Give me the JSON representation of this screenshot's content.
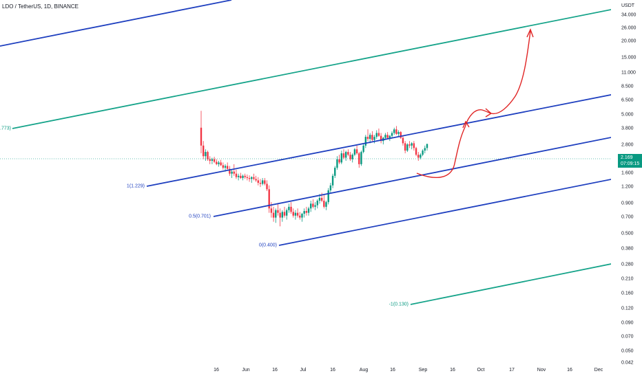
{
  "title": "LDO / TetherUS, 1D, BINANCE",
  "price_axis": {
    "unit": "USDT",
    "ticks": [
      "34.000",
      "26.000",
      "20.000",
      "15.000",
      "11.000",
      "8.500",
      "6.500",
      "5.000",
      "3.800",
      "2.800",
      "2.169",
      "1.600",
      "1.200",
      "0.900",
      "0.700",
      "0.500",
      "0.380",
      "0.280",
      "0.210",
      "0.160",
      "0.120",
      "0.090",
      "0.070",
      "0.050",
      "0.042"
    ]
  },
  "last_price": {
    "value": "2.169",
    "countdown": "07:09:15",
    "color": "#089981"
  },
  "time_axis": {
    "ticks": [
      "16",
      "Jun",
      "16",
      "Jul",
      "16",
      "Aug",
      "16",
      "Sep",
      "16",
      "Oct",
      "17",
      "Nov",
      "16",
      "Dec"
    ]
  },
  "fib_channel": {
    "labels": [
      {
        "text": "1(1.229)",
        "color": "#1e3fbf"
      },
      {
        "text": "0.5(0.701)",
        "color": "#1e3fbf"
      },
      {
        "text": "0(0.400)",
        "color": "#1e3fbf"
      },
      {
        "text": "-1(0.130)",
        "color": "#089981"
      },
      {
        "text": ".773)",
        "color": "#089981"
      }
    ],
    "colors": {
      "blue": "#1e3fbf",
      "green": "#14a389",
      "red": "#e02424"
    }
  },
  "chart_data": {
    "type": "candlestick",
    "title": "LDO / TetherUS, 1D, BINANCE",
    "xlabel": "",
    "ylabel": "USDT",
    "y_scale": "log",
    "ylim": [
      0.042,
      34
    ],
    "x_ticks": [
      "16",
      "Jun",
      "16",
      "Jul",
      "16",
      "Aug",
      "16",
      "Sep",
      "16",
      "Oct",
      "17",
      "Nov",
      "16",
      "Dec"
    ],
    "candles": [
      [
        3.0,
        4.2,
        1.8,
        2.1
      ],
      [
        2.1,
        2.3,
        1.6,
        1.7
      ],
      [
        1.7,
        1.95,
        1.55,
        1.85
      ],
      [
        1.85,
        1.9,
        1.55,
        1.6
      ],
      [
        1.6,
        1.7,
        1.45,
        1.55
      ],
      [
        1.55,
        1.65,
        1.45,
        1.6
      ],
      [
        1.6,
        1.68,
        1.48,
        1.52
      ],
      [
        1.52,
        1.6,
        1.42,
        1.45
      ],
      [
        1.45,
        1.55,
        1.38,
        1.5
      ],
      [
        1.5,
        1.58,
        1.4,
        1.42
      ],
      [
        1.42,
        1.5,
        1.3,
        1.35
      ],
      [
        1.35,
        1.45,
        1.25,
        1.4
      ],
      [
        1.4,
        1.5,
        1.3,
        1.32
      ],
      [
        1.32,
        1.4,
        1.15,
        1.2
      ],
      [
        1.2,
        1.3,
        1.1,
        1.25
      ],
      [
        1.25,
        1.45,
        1.15,
        1.2
      ],
      [
        1.2,
        1.3,
        1.08,
        1.12
      ],
      [
        1.12,
        1.2,
        1.05,
        1.15
      ],
      [
        1.15,
        1.22,
        1.08,
        1.1
      ],
      [
        1.1,
        1.18,
        1.05,
        1.15
      ],
      [
        1.15,
        1.2,
        1.08,
        1.12
      ],
      [
        1.12,
        1.18,
        1.05,
        1.1
      ],
      [
        1.1,
        1.16,
        1.02,
        1.08
      ],
      [
        1.08,
        1.14,
        1.0,
        1.12
      ],
      [
        1.12,
        1.2,
        1.05,
        1.08
      ],
      [
        1.08,
        1.15,
        1.02,
        1.05
      ],
      [
        1.05,
        1.12,
        0.95,
        1.0
      ],
      [
        1.0,
        1.08,
        0.92,
        0.98
      ],
      [
        0.98,
        1.1,
        0.95,
        1.05
      ],
      [
        1.05,
        1.1,
        0.95,
        0.98
      ],
      [
        0.98,
        1.05,
        0.85,
        0.88
      ],
      [
        0.88,
        0.95,
        0.55,
        0.6
      ],
      [
        0.6,
        0.68,
        0.5,
        0.55
      ],
      [
        0.55,
        0.62,
        0.46,
        0.5
      ],
      [
        0.5,
        0.6,
        0.45,
        0.58
      ],
      [
        0.58,
        0.66,
        0.52,
        0.55
      ],
      [
        0.55,
        0.6,
        0.42,
        0.5
      ],
      [
        0.5,
        0.58,
        0.46,
        0.56
      ],
      [
        0.56,
        0.62,
        0.5,
        0.52
      ],
      [
        0.52,
        0.6,
        0.48,
        0.58
      ],
      [
        0.58,
        0.66,
        0.55,
        0.62
      ],
      [
        0.62,
        0.68,
        0.54,
        0.56
      ],
      [
        0.56,
        0.6,
        0.5,
        0.52
      ],
      [
        0.52,
        0.58,
        0.48,
        0.55
      ],
      [
        0.55,
        0.6,
        0.5,
        0.52
      ],
      [
        0.52,
        0.56,
        0.48,
        0.5
      ],
      [
        0.5,
        0.55,
        0.46,
        0.54
      ],
      [
        0.54,
        0.6,
        0.5,
        0.57
      ],
      [
        0.57,
        0.62,
        0.52,
        0.55
      ],
      [
        0.55,
        0.62,
        0.52,
        0.6
      ],
      [
        0.6,
        0.7,
        0.56,
        0.66
      ],
      [
        0.66,
        0.72,
        0.6,
        0.62
      ],
      [
        0.62,
        0.68,
        0.58,
        0.64
      ],
      [
        0.64,
        0.72,
        0.6,
        0.7
      ],
      [
        0.7,
        0.8,
        0.66,
        0.74
      ],
      [
        0.74,
        0.82,
        0.68,
        0.7
      ],
      [
        0.7,
        0.78,
        0.6,
        0.62
      ],
      [
        0.62,
        0.7,
        0.58,
        0.68
      ],
      [
        0.68,
        0.9,
        0.65,
        0.86
      ],
      [
        0.86,
        1.0,
        0.82,
        0.95
      ],
      [
        0.95,
        1.2,
        0.9,
        1.15
      ],
      [
        1.15,
        1.4,
        1.1,
        1.35
      ],
      [
        1.35,
        1.7,
        1.3,
        1.6
      ],
      [
        1.6,
        1.75,
        1.45,
        1.5
      ],
      [
        1.5,
        1.9,
        1.45,
        1.8
      ],
      [
        1.8,
        1.95,
        1.6,
        1.65
      ],
      [
        1.65,
        1.9,
        1.55,
        1.85
      ],
      [
        1.85,
        1.95,
        1.7,
        1.75
      ],
      [
        1.75,
        1.85,
        1.55,
        1.6
      ],
      [
        1.6,
        1.8,
        1.5,
        1.75
      ],
      [
        1.75,
        2.0,
        1.7,
        1.95
      ],
      [
        1.95,
        2.1,
        1.75,
        1.8
      ],
      [
        1.8,
        1.85,
        1.35,
        1.45
      ],
      [
        1.45,
        1.9,
        1.4,
        1.85
      ],
      [
        1.85,
        2.2,
        1.8,
        2.1
      ],
      [
        2.1,
        2.6,
        2.0,
        2.5
      ],
      [
        2.5,
        2.9,
        2.3,
        2.4
      ],
      [
        2.4,
        2.7,
        2.2,
        2.6
      ],
      [
        2.6,
        2.8,
        2.3,
        2.35
      ],
      [
        2.35,
        2.6,
        2.2,
        2.5
      ],
      [
        2.5,
        2.85,
        2.4,
        2.7
      ],
      [
        2.7,
        2.95,
        2.5,
        2.55
      ],
      [
        2.55,
        2.7,
        2.2,
        2.3
      ],
      [
        2.3,
        2.5,
        2.15,
        2.45
      ],
      [
        2.45,
        2.7,
        2.35,
        2.6
      ],
      [
        2.6,
        2.75,
        2.4,
        2.45
      ],
      [
        2.45,
        2.6,
        2.3,
        2.55
      ],
      [
        2.55,
        2.8,
        2.45,
        2.7
      ],
      [
        2.7,
        3.0,
        2.6,
        2.9
      ],
      [
        2.9,
        3.1,
        2.6,
        2.65
      ],
      [
        2.65,
        2.85,
        2.5,
        2.75
      ],
      [
        2.75,
        2.8,
        2.4,
        2.45
      ],
      [
        2.45,
        2.55,
        2.1,
        2.2
      ],
      [
        2.2,
        2.3,
        1.8,
        1.9
      ],
      [
        1.9,
        2.2,
        1.85,
        2.15
      ],
      [
        2.15,
        2.3,
        2.0,
        2.1
      ],
      [
        2.1,
        2.25,
        1.95,
        2.2
      ],
      [
        2.2,
        2.3,
        1.9,
        2.0
      ],
      [
        2.0,
        2.05,
        1.7,
        1.75
      ],
      [
        1.75,
        1.85,
        1.55,
        1.65
      ],
      [
        1.65,
        1.8,
        1.6,
        1.75
      ],
      [
        1.75,
        1.95,
        1.7,
        1.9
      ],
      [
        1.9,
        2.1,
        1.8,
        2.0
      ],
      [
        2.0,
        2.18,
        1.9,
        2.17
      ]
    ]
  }
}
